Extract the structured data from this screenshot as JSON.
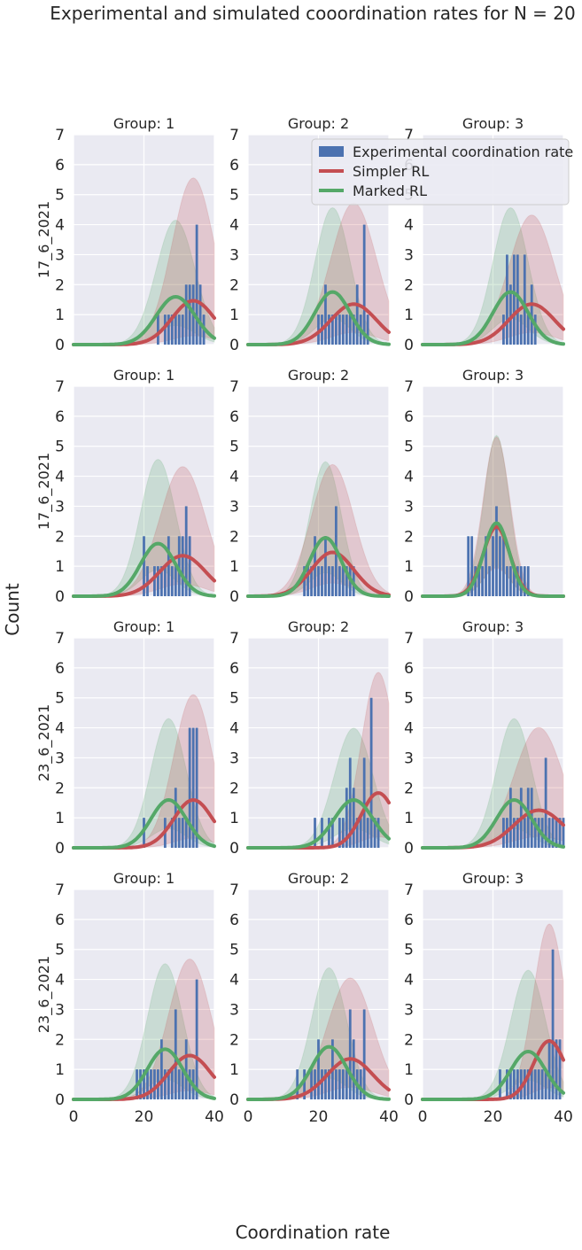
{
  "figure": {
    "suptitle": "Experimental and simulated cooordination rates for N = 20",
    "xlabel": "Coordination rate",
    "ylabel": "Count"
  },
  "legend": {
    "placement": "top-right",
    "entries": [
      {
        "label": "Experimental coordination rate",
        "color": "#4c72b0",
        "kind": "bar"
      },
      {
        "label": "Simpler RL",
        "color": "#c44e52",
        "kind": "line"
      },
      {
        "label": "Marked RL",
        "color": "#55a868",
        "kind": "line"
      }
    ]
  },
  "colors": {
    "background": "#eaeaf2",
    "grid": "#ffffff",
    "bar": "#4c72b0",
    "simpler": "#c44e52",
    "marked": "#55a868"
  },
  "axes": {
    "xlim": [
      0,
      40
    ],
    "ylim": [
      0,
      7
    ],
    "xticks": [
      0,
      20,
      40
    ],
    "yticks": [
      0,
      1,
      2,
      3,
      4,
      5,
      6,
      7
    ],
    "grid": true
  },
  "chart_data": [
    {
      "type": "bar",
      "row_label": "17_6_2021",
      "title": "Group: 1",
      "bars": {
        "x": [
          24,
          26,
          27,
          28,
          29,
          30,
          31,
          32,
          33,
          34,
          35,
          36,
          37
        ],
        "values": [
          1,
          1,
          1,
          1,
          1,
          1,
          1,
          2,
          2,
          2,
          4,
          2,
          1
        ]
      },
      "simpler": {
        "mean": 34,
        "sd": 6,
        "area": 22,
        "band_low": 0.2,
        "band_high": 3.8
      },
      "marked": {
        "mean": 29,
        "sd": 5.5,
        "area": 22,
        "band_low": 0.4,
        "band_high": 2.6
      }
    },
    {
      "type": "bar",
      "row_label": "17_6_2021",
      "title": "Group: 2",
      "bars": {
        "x": [
          20,
          21,
          22,
          23,
          24,
          25,
          26,
          27,
          28,
          29,
          30,
          31,
          32,
          33,
          34
        ],
        "values": [
          1,
          1,
          2,
          1,
          1,
          1,
          1,
          1,
          1,
          1,
          1,
          2,
          1,
          4,
          1
        ]
      },
      "simpler": {
        "mean": 30,
        "sd": 6.5,
        "area": 22,
        "band_low": 0.3,
        "band_high": 3.5
      },
      "marked": {
        "mean": 24,
        "sd": 5,
        "area": 22,
        "band_low": 0.5,
        "band_high": 2.6
      }
    },
    {
      "type": "bar",
      "row_label": "17_6_2021",
      "title": "Group: 3",
      "bars": {
        "x": [
          23,
          24,
          25,
          26,
          27,
          28,
          29,
          30,
          31,
          32
        ],
        "values": [
          1,
          3,
          2,
          3,
          3,
          1,
          3,
          1,
          2,
          1
        ]
      },
      "simpler": {
        "mean": 31,
        "sd": 6.5,
        "area": 22,
        "band_low": 0.3,
        "band_high": 3.2
      },
      "marked": {
        "mean": 25,
        "sd": 5,
        "area": 22,
        "band_low": 0.5,
        "band_high": 2.6
      }
    },
    {
      "type": "bar",
      "row_label": "17_6_2021",
      "title": "Group: 1",
      "bars": {
        "x": [
          20,
          21,
          23,
          24,
          25,
          26,
          27,
          28,
          29,
          30,
          31,
          32,
          33
        ],
        "values": [
          2,
          1,
          1,
          1,
          1,
          1,
          2,
          1,
          1,
          2,
          2,
          3,
          2
        ]
      },
      "simpler": {
        "mean": 31,
        "sd": 6.5,
        "area": 22,
        "band_low": 0.3,
        "band_high": 3.2
      },
      "marked": {
        "mean": 24,
        "sd": 5,
        "area": 22,
        "band_low": 0.5,
        "band_high": 2.6
      }
    },
    {
      "type": "bar",
      "row_label": "17_6_2021",
      "title": "Group: 2",
      "bars": {
        "x": [
          16,
          17,
          18,
          19,
          20,
          21,
          22,
          23,
          24,
          25,
          26,
          27,
          28,
          29,
          30
        ],
        "values": [
          1,
          1,
          1,
          2,
          1,
          1,
          2,
          1,
          1,
          3,
          1,
          1,
          1,
          1,
          1
        ]
      },
      "simpler": {
        "mean": 24,
        "sd": 6,
        "area": 22,
        "band_low": 0.3,
        "band_high": 3.0
      },
      "marked": {
        "mean": 22,
        "sd": 4.5,
        "area": 22,
        "band_low": 0.4,
        "band_high": 2.3
      }
    },
    {
      "type": "bar",
      "row_label": "17_6_2021",
      "title": "Group: 3",
      "bars": {
        "x": [
          13,
          14,
          15,
          16,
          17,
          18,
          19,
          20,
          21,
          22,
          23,
          24,
          25,
          26,
          27,
          28,
          29,
          30
        ],
        "values": [
          2,
          2,
          1,
          1,
          1,
          2,
          1,
          2,
          3,
          2,
          2,
          1,
          1,
          1,
          1,
          1,
          1,
          1
        ]
      },
      "simpler": {
        "mean": 21,
        "sd": 3.8,
        "area": 22,
        "band_low": 0.4,
        "band_high": 2.3
      },
      "marked": {
        "mean": 21,
        "sd": 3.6,
        "area": 22,
        "band_low": 0.4,
        "band_high": 2.2
      }
    },
    {
      "type": "bar",
      "row_label": "23_6_2021",
      "title": "Group: 1",
      "bars": {
        "x": [
          20,
          26,
          28,
          29,
          30,
          31,
          32,
          33,
          34,
          35
        ],
        "values": [
          1,
          1,
          1,
          2,
          1,
          1,
          1,
          4,
          4,
          4
        ]
      },
      "simpler": {
        "mean": 34,
        "sd": 5.5,
        "area": 22,
        "band_low": 0.2,
        "band_high": 3.2
      },
      "marked": {
        "mean": 27,
        "sd": 5,
        "area": 20,
        "band_low": 0.4,
        "band_high": 2.7
      }
    },
    {
      "type": "bar",
      "row_label": "23_6_2021",
      "title": "Group: 2",
      "bars": {
        "x": [
          19,
          21,
          23,
          24,
          26,
          27,
          28,
          29,
          30,
          31,
          32,
          33,
          34,
          35,
          36,
          37
        ],
        "values": [
          1,
          1,
          1,
          1,
          1,
          1,
          2,
          3,
          2,
          1,
          1,
          3,
          1,
          5,
          1,
          1
        ]
      },
      "simpler": {
        "mean": 37,
        "sd": 4.8,
        "area": 22,
        "band_low": 0.2,
        "band_high": 3.2
      },
      "marked": {
        "mean": 30,
        "sd": 5.5,
        "area": 22,
        "band_low": 0.4,
        "band_high": 2.5
      }
    },
    {
      "type": "bar",
      "row_label": "23_6_2021",
      "title": "Group: 3",
      "bars": {
        "x": [
          23,
          24,
          25,
          26,
          27,
          28,
          29,
          30,
          31,
          32,
          33,
          34,
          35,
          36,
          37,
          38,
          39,
          40
        ],
        "values": [
          1,
          1,
          2,
          1,
          1,
          2,
          1,
          2,
          2,
          1,
          1,
          1,
          3,
          1,
          1,
          1,
          1,
          1
        ]
      },
      "simpler": {
        "mean": 33,
        "sd": 7,
        "area": 22,
        "band_low": 0.3,
        "band_high": 3.2
      },
      "marked": {
        "mean": 26,
        "sd": 5,
        "area": 20,
        "band_low": 0.4,
        "band_high": 2.7
      }
    },
    {
      "type": "bar",
      "row_label": "23_6_2021",
      "title": "Group: 1",
      "bars": {
        "x": [
          18,
          19,
          20,
          21,
          22,
          23,
          24,
          25,
          26,
          27,
          28,
          29,
          30,
          31,
          32,
          33,
          34,
          35
        ],
        "values": [
          1,
          1,
          1,
          1,
          1,
          1,
          1,
          2,
          1,
          1,
          1,
          3,
          1,
          1,
          2,
          1,
          1,
          4
        ]
      },
      "simpler": {
        "mean": 33,
        "sd": 6,
        "area": 22,
        "band_low": 0.2,
        "band_high": 3.2
      },
      "marked": {
        "mean": 26,
        "sd": 5,
        "area": 21,
        "band_low": 0.4,
        "band_high": 2.7
      }
    },
    {
      "type": "bar",
      "row_label": "23_6_2021",
      "title": "Group: 2",
      "bars": {
        "x": [
          14,
          16,
          18,
          19,
          20,
          21,
          22,
          23,
          24,
          25,
          26,
          27,
          28,
          29,
          30,
          31,
          32,
          33
        ],
        "values": [
          1,
          1,
          1,
          1,
          2,
          1,
          1,
          1,
          2,
          1,
          1,
          1,
          1,
          3,
          2,
          1,
          1,
          3
        ]
      },
      "simpler": {
        "mean": 29,
        "sd": 6.5,
        "area": 22,
        "band_low": 0.3,
        "band_high": 3.0
      },
      "marked": {
        "mean": 23,
        "sd": 5,
        "area": 22,
        "band_low": 0.4,
        "band_high": 2.5
      }
    },
    {
      "type": "bar",
      "row_label": "23_6_2021",
      "title": "Group: 3",
      "bars": {
        "x": [
          22,
          24,
          25,
          26,
          27,
          28,
          29,
          30,
          31,
          32,
          33,
          34,
          35,
          36,
          37,
          38,
          39
        ],
        "values": [
          1,
          1,
          1,
          1,
          1,
          1,
          1,
          1,
          1,
          1,
          1,
          1,
          1,
          2,
          5,
          2,
          2
        ]
      },
      "simpler": {
        "mean": 36,
        "sd": 4.5,
        "area": 22,
        "band_low": 0.2,
        "band_high": 3.0
      },
      "marked": {
        "mean": 30,
        "sd": 5,
        "area": 20,
        "band_low": 0.4,
        "band_high": 2.7
      }
    }
  ]
}
